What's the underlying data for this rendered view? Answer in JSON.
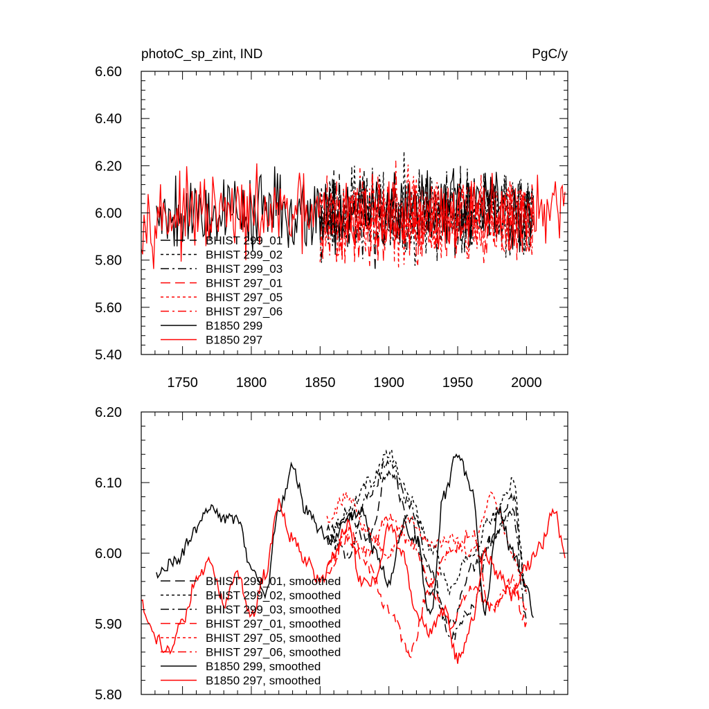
{
  "chart_data": [
    {
      "type": "line",
      "title_left": "photoC_sp_zint, IND",
      "title_right": "PgC/y",
      "xlim": [
        1720,
        2030
      ],
      "ylim": [
        5.4,
        6.6
      ],
      "x_ticks": [
        1750,
        1800,
        1850,
        1900,
        1950,
        2000
      ],
      "y_ticks": [
        5.4,
        5.6,
        5.8,
        6.0,
        6.2,
        6.4,
        6.6
      ],
      "y_tick_labels": [
        "5.40",
        "5.60",
        "5.80",
        "6.00",
        "6.20",
        "6.40",
        "6.60"
      ],
      "legend": [
        "BHIST 299_01",
        "BHIST 299_02",
        "BHIST 299_03",
        "BHIST 297_01",
        "BHIST 297_05",
        "BHIST 297_06",
        "B1850 299",
        "B1850 297"
      ],
      "series": [
        {
          "name": "BHIST 299_01",
          "color": "#000000",
          "dash": "long-dash",
          "start": 1850,
          "end": 2005,
          "mean": 6.0,
          "amplitude": 0.15,
          "seed": 11
        },
        {
          "name": "BHIST 299_02",
          "color": "#000000",
          "dash": "short-dash",
          "start": 1850,
          "end": 2005,
          "mean": 6.01,
          "amplitude": 0.15,
          "seed": 23
        },
        {
          "name": "BHIST 299_03",
          "color": "#000000",
          "dash": "dash-dot",
          "start": 1850,
          "end": 2005,
          "mean": 5.99,
          "amplitude": 0.15,
          "seed": 37
        },
        {
          "name": "BHIST 297_01",
          "color": "#ff0000",
          "dash": "long-dash",
          "start": 1850,
          "end": 2005,
          "mean": 5.97,
          "amplitude": 0.15,
          "seed": 41
        },
        {
          "name": "BHIST 297_05",
          "color": "#ff0000",
          "dash": "short-dash",
          "start": 1850,
          "end": 2005,
          "mean": 5.98,
          "amplitude": 0.15,
          "seed": 53
        },
        {
          "name": "BHIST 297_06",
          "color": "#ff0000",
          "dash": "dash-dot",
          "start": 1850,
          "end": 2005,
          "mean": 5.98,
          "amplitude": 0.15,
          "seed": 67
        },
        {
          "name": "B1850 299",
          "color": "#000000",
          "dash": "solid",
          "start": 1731,
          "end": 2005,
          "mean": 6.01,
          "amplitude": 0.14,
          "seed": 79
        },
        {
          "name": "B1850 297",
          "color": "#ff0000",
          "dash": "solid",
          "start": 1720,
          "end": 2028,
          "mean": 5.99,
          "amplitude": 0.13,
          "seed": 97
        }
      ]
    },
    {
      "type": "line",
      "xlim": [
        1720,
        2030
      ],
      "ylim": [
        5.8,
        6.2
      ],
      "x_ticks": [
        1750,
        1800,
        1850,
        1900,
        1950,
        2000
      ],
      "y_ticks": [
        5.8,
        5.9,
        6.0,
        6.1,
        6.2
      ],
      "y_tick_labels": [
        "5.80",
        "5.90",
        "6.00",
        "6.10",
        "6.20"
      ],
      "legend": [
        "BHIST 299_01, smoothed",
        "BHIST 299_02, smoothed",
        "BHIST 299_03, smoothed",
        "BHIST 297_01, smoothed",
        "BHIST 297_05, smoothed",
        "BHIST 297_06, smoothed",
        "B1850 299, smoothed",
        "B1850 297, smoothed"
      ],
      "series": [
        {
          "name": "BHIST 299_01, smoothed",
          "color": "#000000",
          "dash": "long-dash",
          "x": [
            1855,
            1870,
            1885,
            1900,
            1915,
            1930,
            1945,
            1960,
            1975,
            1990,
            2000
          ],
          "y": [
            6.03,
            6.05,
            6.02,
            6.12,
            6.05,
            5.95,
            5.9,
            5.98,
            6.02,
            6.08,
            5.95
          ]
        },
        {
          "name": "BHIST 299_02, smoothed",
          "color": "#000000",
          "dash": "short-dash",
          "x": [
            1855,
            1870,
            1885,
            1900,
            1915,
            1930,
            1945,
            1960,
            1975,
            1990,
            2000
          ],
          "y": [
            6.02,
            6.06,
            6.1,
            6.14,
            6.08,
            6.01,
            5.95,
            6.0,
            6.05,
            6.1,
            5.95
          ]
        },
        {
          "name": "BHIST 299_03, smoothed",
          "color": "#000000",
          "dash": "dash-dot",
          "x": [
            1855,
            1870,
            1885,
            1900,
            1915,
            1930,
            1945,
            1960,
            1975,
            1990,
            2000
          ],
          "y": [
            6.02,
            6.0,
            6.08,
            6.13,
            6.07,
            5.98,
            5.88,
            5.92,
            6.02,
            6.06,
            5.91
          ]
        },
        {
          "name": "BHIST 297_01, smoothed",
          "color": "#ff0000",
          "dash": "long-dash",
          "x": [
            1855,
            1870,
            1885,
            1900,
            1915,
            1930,
            1945,
            1960,
            1975,
            1990,
            2000
          ],
          "y": [
            5.97,
            6.02,
            5.98,
            5.92,
            5.86,
            5.95,
            5.9,
            5.95,
            5.92,
            5.95,
            5.9
          ]
        },
        {
          "name": "BHIST 297_05, smoothed",
          "color": "#ff0000",
          "dash": "short-dash",
          "x": [
            1855,
            1870,
            1885,
            1900,
            1915,
            1930,
            1945,
            1960,
            1975,
            1990,
            2000
          ],
          "y": [
            6.05,
            6.08,
            6.03,
            6.0,
            6.05,
            6.01,
            6.02,
            6.0,
            6.08,
            6.0,
            5.95
          ]
        },
        {
          "name": "BHIST 297_06, smoothed",
          "color": "#ff0000",
          "dash": "dash-dot",
          "x": [
            1855,
            1870,
            1885,
            1900,
            1915,
            1930,
            1945,
            1960,
            1975,
            1990,
            2000
          ],
          "y": [
            5.98,
            6.03,
            6.0,
            6.05,
            6.02,
            5.96,
            6.0,
            6.03,
            5.92,
            5.96,
            5.92
          ]
        },
        {
          "name": "B1850 299, smoothed",
          "color": "#000000",
          "dash": "solid",
          "x": [
            1731,
            1745,
            1760,
            1770,
            1780,
            1790,
            1800,
            1810,
            1820,
            1830,
            1840,
            1850,
            1860,
            1870,
            1880,
            1890,
            1900,
            1910,
            1920,
            1930,
            1940,
            1950,
            1960,
            1970,
            1980,
            1990,
            2000,
            2005
          ],
          "y": [
            5.97,
            5.99,
            6.03,
            6.07,
            6.05,
            6.05,
            5.98,
            5.94,
            6.06,
            6.12,
            6.06,
            6.03,
            6.02,
            6.05,
            6.06,
            6.0,
            5.96,
            6.04,
            6.02,
            5.91,
            6.08,
            6.14,
            6.09,
            5.92,
            6.06,
            6.0,
            5.95,
            5.91
          ]
        },
        {
          "name": "B1850 297, smoothed",
          "color": "#ff0000",
          "dash": "solid",
          "x": [
            1720,
            1730,
            1740,
            1750,
            1760,
            1770,
            1780,
            1790,
            1800,
            1810,
            1820,
            1830,
            1840,
            1850,
            1860,
            1870,
            1880,
            1890,
            1900,
            1910,
            1920,
            1930,
            1940,
            1950,
            1960,
            1970,
            1980,
            1990,
            2000,
            2010,
            2020,
            2028
          ],
          "y": [
            5.93,
            5.88,
            5.86,
            5.9,
            5.96,
            5.99,
            5.93,
            5.97,
            5.91,
            5.97,
            6.07,
            6.02,
            5.99,
            5.96,
            6.0,
            6.04,
            5.96,
            5.96,
            6.04,
            6.0,
            5.91,
            5.89,
            5.92,
            5.85,
            5.9,
            6.0,
            5.97,
            5.94,
            5.98,
            6.01,
            6.06,
            6.0
          ]
        }
      ]
    }
  ]
}
